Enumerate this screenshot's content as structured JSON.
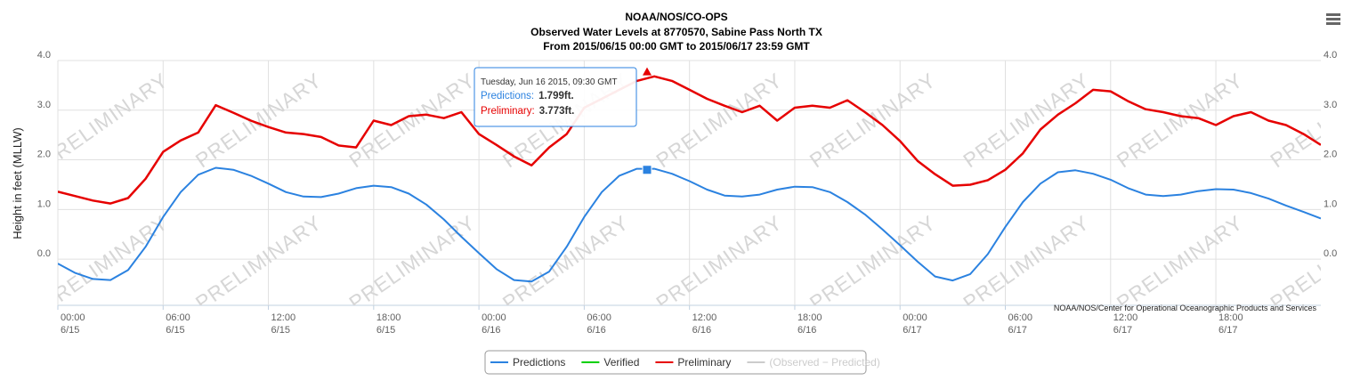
{
  "chart_data": {
    "type": "line",
    "title": [
      "NOAA/NOS/CO-OPS",
      "Observed Water Levels at 8770570, Sabine Pass North TX",
      "From 2015/06/15 00:00 GMT to 2015/06/17 23:59 GMT"
    ],
    "ylabel": "Height in feet (MLLW)",
    "credit": "NOAA/NOS/Center for Operational Oceanographic Products and Services",
    "watermark": "PRELIMINARY",
    "grid": true,
    "x": [
      "6/15 00:00",
      "6/15 01:00",
      "6/15 02:00",
      "6/15 03:00",
      "6/15 04:00",
      "6/15 05:00",
      "6/15 06:00",
      "6/15 07:00",
      "6/15 08:00",
      "6/15 09:00",
      "6/15 10:00",
      "6/15 11:00",
      "6/15 12:00",
      "6/15 13:00",
      "6/15 14:00",
      "6/15 15:00",
      "6/15 16:00",
      "6/15 17:00",
      "6/15 18:00",
      "6/15 19:00",
      "6/15 20:00",
      "6/15 21:00",
      "6/15 22:00",
      "6/15 23:00",
      "6/16 00:00",
      "6/16 01:00",
      "6/16 02:00",
      "6/16 03:00",
      "6/16 04:00",
      "6/16 05:00",
      "6/16 06:00",
      "6/16 07:00",
      "6/16 08:00",
      "6/16 09:00",
      "6/16 10:00",
      "6/16 11:00",
      "6/16 12:00",
      "6/16 13:00",
      "6/16 14:00",
      "6/16 15:00",
      "6/16 16:00",
      "6/16 17:00",
      "6/16 18:00",
      "6/16 19:00",
      "6/16 20:00",
      "6/16 21:00",
      "6/16 22:00",
      "6/16 23:00",
      "6/17 00:00",
      "6/17 01:00",
      "6/17 02:00",
      "6/17 03:00",
      "6/17 04:00",
      "6/17 05:00",
      "6/17 06:00",
      "6/17 07:00",
      "6/17 08:00",
      "6/17 09:00",
      "6/17 10:00",
      "6/17 11:00",
      "6/17 12:00",
      "6/17 13:00",
      "6/17 14:00",
      "6/17 15:00",
      "6/17 16:00",
      "6/17 17:00",
      "6/17 18:00",
      "6/17 19:00",
      "6/17 20:00",
      "6/17 21:00",
      "6/17 22:00",
      "6/17 23:00",
      "6/17 23:59"
    ],
    "xlim": [
      "6/15 00:00",
      "6/17 23:59"
    ],
    "xticks": [
      {
        "value": "6/15 00:00",
        "label": [
          "00:00",
          "6/15"
        ]
      },
      {
        "value": "6/15 06:00",
        "label": [
          "06:00",
          "6/15"
        ]
      },
      {
        "value": "6/15 12:00",
        "label": [
          "12:00",
          "6/15"
        ]
      },
      {
        "value": "6/15 18:00",
        "label": [
          "18:00",
          "6/15"
        ]
      },
      {
        "value": "6/16 00:00",
        "label": [
          "00:00",
          "6/16"
        ]
      },
      {
        "value": "6/16 06:00",
        "label": [
          "06:00",
          "6/16"
        ]
      },
      {
        "value": "6/16 12:00",
        "label": [
          "12:00",
          "6/16"
        ]
      },
      {
        "value": "6/16 18:00",
        "label": [
          "18:00",
          "6/16"
        ]
      },
      {
        "value": "6/17 00:00",
        "label": [
          "00:00",
          "6/17"
        ]
      },
      {
        "value": "6/17 06:00",
        "label": [
          "06:00",
          "6/17"
        ]
      },
      {
        "value": "6/17 12:00",
        "label": [
          "12:00",
          "6/17"
        ]
      },
      {
        "value": "6/17 18:00",
        "label": [
          "18:00",
          "6/17"
        ]
      }
    ],
    "ylim": [
      -0.93,
      4.0
    ],
    "yticks": [
      {
        "value": 0,
        "label": "0.0"
      },
      {
        "value": 1,
        "label": "1.0"
      },
      {
        "value": 2,
        "label": "2.0"
      },
      {
        "value": 3,
        "label": "3.0"
      },
      {
        "value": 4,
        "label": "4.0"
      }
    ],
    "y2lim": [
      -0.93,
      4.0
    ],
    "y2ticks": [
      {
        "value": 0,
        "label": "0.0"
      },
      {
        "value": 1,
        "label": "1.0"
      },
      {
        "value": 2,
        "label": "2.0"
      },
      {
        "value": 3,
        "label": "3.0"
      },
      {
        "value": 4,
        "label": "4.0"
      }
    ],
    "series": [
      {
        "name": "Predictions",
        "color": "#2b82e0",
        "values": [
          -0.09,
          -0.28,
          -0.4,
          -0.42,
          -0.22,
          0.25,
          0.85,
          1.35,
          1.7,
          1.84,
          1.8,
          1.68,
          1.52,
          1.35,
          1.26,
          1.25,
          1.32,
          1.43,
          1.48,
          1.45,
          1.32,
          1.1,
          0.8,
          0.45,
          0.12,
          -0.2,
          -0.42,
          -0.45,
          -0.25,
          0.25,
          0.85,
          1.35,
          1.68,
          1.82,
          1.82,
          1.72,
          1.57,
          1.4,
          1.28,
          1.26,
          1.3,
          1.4,
          1.46,
          1.45,
          1.35,
          1.15,
          0.9,
          0.6,
          0.28,
          -0.05,
          -0.35,
          -0.43,
          -0.3,
          0.1,
          0.65,
          1.15,
          1.52,
          1.75,
          1.79,
          1.72,
          1.6,
          1.43,
          1.3,
          1.27,
          1.3,
          1.37,
          1.41,
          1.4,
          1.33,
          1.22,
          1.08,
          0.95,
          0.82
        ]
      },
      {
        "name": "Verified",
        "color": "#00d000",
        "values": null
      },
      {
        "name": "Preliminary",
        "color": "#e60000",
        "values": [
          1.36,
          1.27,
          1.18,
          1.12,
          1.23,
          1.62,
          2.16,
          2.39,
          2.55,
          3.1,
          2.95,
          2.79,
          2.66,
          2.55,
          2.52,
          2.46,
          2.29,
          2.25,
          2.79,
          2.7,
          2.88,
          2.91,
          2.84,
          2.96,
          2.52,
          2.3,
          2.07,
          1.89,
          2.25,
          2.52,
          3.05,
          3.23,
          3.41,
          3.59,
          3.68,
          3.59,
          3.41,
          3.23,
          3.09,
          2.96,
          3.09,
          2.79,
          3.05,
          3.09,
          3.05,
          3.2,
          2.96,
          2.7,
          2.38,
          1.98,
          1.71,
          1.48,
          1.5,
          1.59,
          1.8,
          2.13,
          2.61,
          2.91,
          3.14,
          3.41,
          3.38,
          3.18,
          3.02,
          2.96,
          2.88,
          2.84,
          2.7,
          2.88,
          2.96,
          2.79,
          2.7,
          2.52,
          2.3
        ]
      },
      {
        "name": "(Observed − Predicted)",
        "color": "#cccccc",
        "values": null,
        "hidden": true
      }
    ],
    "tooltip": {
      "header": "Tuesday, Jun 16 2015, 09:30 GMT",
      "items": [
        {
          "name": "Predictions:",
          "value": 1.799,
          "label": "1.799ft.",
          "color": "#2b82e0"
        },
        {
          "name": "Preliminary:",
          "value": 3.773,
          "label": "3.773ft.",
          "color": "#e60000"
        }
      ]
    }
  }
}
